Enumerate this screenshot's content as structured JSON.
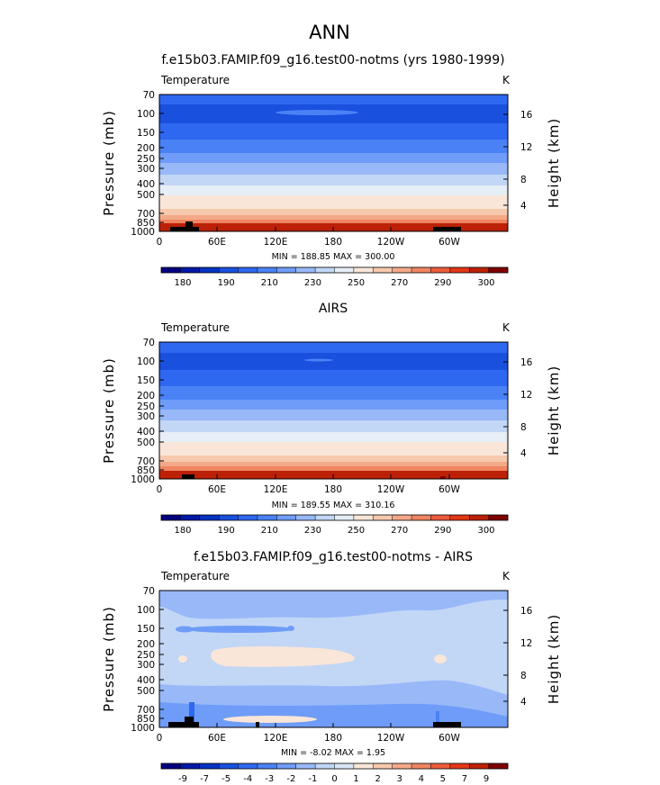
{
  "figure_title": "ANN",
  "colors": {
    "abs_palette": [
      "#00007f",
      "#0019a6",
      "#0533c3",
      "#1a50de",
      "#2e68f0",
      "#4a82f6",
      "#6f9cf8",
      "#98b8f8",
      "#c2d6f6",
      "#e6eef6",
      "#f9e6d8",
      "#f6c9ad",
      "#f3a988",
      "#f08562",
      "#ec5c3c",
      "#e23715",
      "#bc2108",
      "#7f0000"
    ],
    "diff_palette": [
      "#00007f",
      "#0019a6",
      "#0533c3",
      "#1a50de",
      "#2e68f0",
      "#4a82f6",
      "#6f9cf8",
      "#98b8f8",
      "#c2d6f6",
      "#d9e6f6",
      "#f9e6d8",
      "#f6c9ad",
      "#f3a988",
      "#f08562",
      "#ec5c3c",
      "#e23715",
      "#bc2108",
      "#7f0000"
    ],
    "topo": "#000000"
  },
  "chart_data": [
    {
      "type": "heatmap",
      "title": "f.e15b03.FAMIP.f09_g16.test00-notms (yrs 1980-1999)",
      "variable_label": "Temperature",
      "units_label": "K",
      "ylabel": "Pressure (mb)",
      "ylabel_right": "Height (km)",
      "x_ticks": [
        "0",
        "60E",
        "120E",
        "180",
        "120W",
        "60W"
      ],
      "y_ticks": [
        "70",
        "100",
        "150",
        "200",
        "250",
        "300",
        "400",
        "500",
        "700",
        "850",
        "1000"
      ],
      "y_ticks_right": [
        "4",
        "8",
        "12",
        "16"
      ],
      "minmax_label": "MIN = 188.85   MAX = 300.00",
      "min": 188.85,
      "max": 300.0,
      "colorbar_labels": [
        "180",
        "190",
        "210",
        "230",
        "250",
        "270",
        "290",
        "300"
      ],
      "colorbar_type": "abs",
      "levels_mb": [
        70,
        100,
        150,
        200,
        250,
        300,
        400,
        500,
        700,
        850,
        1000
      ],
      "profile_K": [
        206,
        194,
        205,
        215,
        225,
        235,
        248,
        259,
        273,
        283,
        290
      ]
    },
    {
      "type": "heatmap",
      "title": "AIRS",
      "variable_label": "Temperature",
      "units_label": "K",
      "ylabel": "Pressure (mb)",
      "ylabel_right": "Height (km)",
      "x_ticks": [
        "0",
        "60E",
        "120E",
        "180",
        "120W",
        "60W"
      ],
      "y_ticks": [
        "70",
        "100",
        "150",
        "200",
        "250",
        "300",
        "400",
        "500",
        "700",
        "850",
        "1000"
      ],
      "y_ticks_right": [
        "4",
        "8",
        "12",
        "16"
      ],
      "minmax_label": "MIN = 189.55   MAX = 310.16",
      "min": 189.55,
      "max": 310.16,
      "colorbar_labels": [
        "180",
        "190",
        "210",
        "230",
        "250",
        "270",
        "290",
        "300"
      ],
      "colorbar_type": "abs",
      "levels_mb": [
        70,
        100,
        150,
        200,
        250,
        300,
        400,
        500,
        700,
        850,
        1000
      ],
      "profile_K": [
        207,
        195,
        206,
        216,
        226,
        236,
        249,
        260,
        274,
        284,
        292
      ]
    },
    {
      "type": "heatmap",
      "title": "f.e15b03.FAMIP.f09_g16.test00-notms - AIRS",
      "variable_label": "Temperature",
      "units_label": "K",
      "ylabel": "Pressure (mb)",
      "ylabel_right": "Height (km)",
      "x_ticks": [
        "0",
        "60E",
        "120E",
        "180",
        "120W",
        "60W"
      ],
      "y_ticks": [
        "70",
        "100",
        "150",
        "200",
        "250",
        "300",
        "400",
        "500",
        "700",
        "850",
        "1000"
      ],
      "y_ticks_right": [
        "4",
        "8",
        "12",
        "16"
      ],
      "minmax_label": "MIN =   -8.02   MAX =   1.95",
      "min": -8.02,
      "max": 1.95,
      "colorbar_labels": [
        "-9",
        "-7",
        "-5",
        "-4",
        "-3",
        "-2",
        "-1",
        "0",
        "1",
        "2",
        "3",
        "4",
        "5",
        "7",
        "9"
      ],
      "colorbar_type": "diff"
    }
  ]
}
